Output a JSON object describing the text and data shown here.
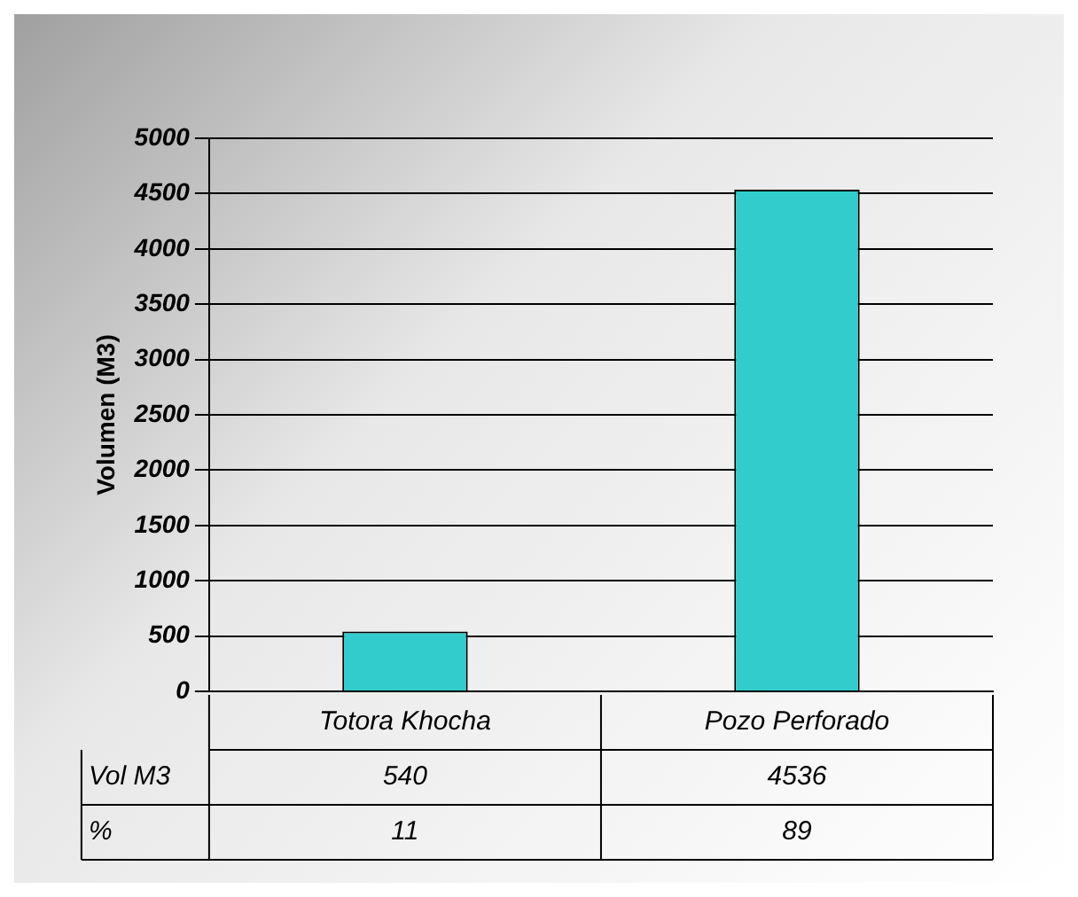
{
  "chart_data": {
    "type": "bar",
    "ylabel": "Volumen (M3)",
    "categories": [
      "Totora Khocha",
      "Pozo Perforado"
    ],
    "series": [
      {
        "name": "Vol M3",
        "color": "#33cccc",
        "values": [
          540,
          4536
        ]
      }
    ],
    "ylim": [
      0,
      5000
    ],
    "yticks": [
      0,
      500,
      1000,
      1500,
      2000,
      2500,
      3000,
      3500,
      4000,
      4500,
      5000
    ],
    "grid": "y",
    "data_labels": true,
    "legend": false,
    "annotations": [
      "%",
      "11",
      "89"
    ]
  }
}
